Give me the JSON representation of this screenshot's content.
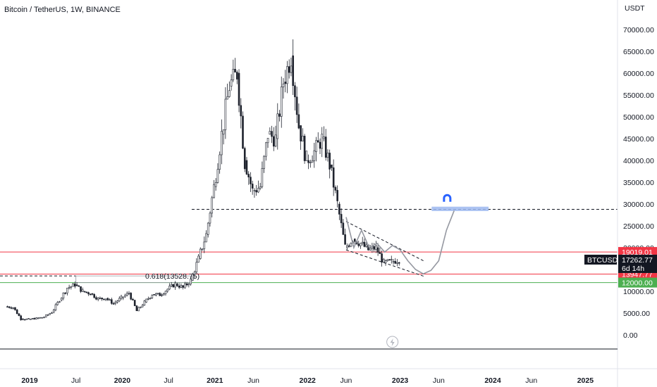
{
  "header": {
    "title": "Bitcoin / TetherUS, 1W, BINANCE"
  },
  "colors": {
    "candle": "#1e222d",
    "projection": "#9598a1",
    "resistance_line": "#f23645",
    "support_line": "#4caf50",
    "target_zone": "#9db8f0",
    "magnet_icon": "#2962ff"
  },
  "chart_data": {
    "type": "candlestick",
    "currency": "USDT",
    "y_scale": "linear",
    "ylim": [
      -3000,
      73000
    ],
    "y_ticks": [
      "70000.00",
      "65000.00",
      "60000.00",
      "55000.00",
      "50000.00",
      "45000.00",
      "40000.00",
      "35000.00",
      "30000.00",
      "25000.00",
      "20000.00",
      "15000.00",
      "10000.00",
      "5000.00",
      "0.00"
    ],
    "x_ticks": [
      "2019",
      "Jul",
      "2020",
      "Jul",
      "2021",
      "Jun",
      "2022",
      "Jun",
      "2023",
      "Jun",
      "2024",
      "Jun",
      "2025"
    ],
    "x_tick_dates": [
      "2019-01",
      "2019-07",
      "2020-01",
      "2020-07",
      "2021-01",
      "2021-06",
      "2022-01",
      "2022-06",
      "2023-01",
      "2023-06",
      "2024-01",
      "2024-06",
      "2025-01"
    ],
    "price_path": [
      [
        "2018-10",
        6500
      ],
      [
        "2018-11",
        6300
      ],
      [
        "2018-12",
        3700
      ],
      [
        "2019-01",
        3600
      ],
      [
        "2019-02",
        3800
      ],
      [
        "2019-03",
        4100
      ],
      [
        "2019-04",
        5200
      ],
      [
        "2019-05",
        8000
      ],
      [
        "2019-06",
        10800
      ],
      [
        "2019-07",
        11500
      ],
      [
        "2019-08",
        10000
      ],
      [
        "2019-09",
        9500
      ],
      [
        "2019-10",
        8300
      ],
      [
        "2019-11",
        8400
      ],
      [
        "2019-12",
        7200
      ],
      [
        "2020-01",
        8500
      ],
      [
        "2020-02",
        9600
      ],
      [
        "2020-03",
        5500
      ],
      [
        "2020-04",
        7500
      ],
      [
        "2020-05",
        9300
      ],
      [
        "2020-06",
        9200
      ],
      [
        "2020-07",
        10500
      ],
      [
        "2020-08",
        11700
      ],
      [
        "2020-09",
        10800
      ],
      [
        "2020-10",
        12500
      ],
      [
        "2020-11",
        17500
      ],
      [
        "2020-12",
        23000
      ],
      [
        "2021-01",
        34000
      ],
      [
        "2021-02",
        46000
      ],
      [
        "2021-03",
        57000
      ],
      [
        "2021-04",
        60000
      ],
      [
        "2021-05",
        40000
      ],
      [
        "2021-06",
        33000
      ],
      [
        "2021-07",
        34000
      ],
      [
        "2021-08",
        46000
      ],
      [
        "2021-09",
        45000
      ],
      [
        "2021-10",
        58000
      ],
      [
        "2021-11",
        64000
      ],
      [
        "2021-12",
        48000
      ],
      [
        "2022-01",
        40000
      ],
      [
        "2022-02",
        42000
      ],
      [
        "2022-03",
        45000
      ],
      [
        "2022-04",
        39000
      ],
      [
        "2022-05",
        30000
      ],
      [
        "2022-06",
        20000
      ],
      [
        "2022-07",
        22000
      ],
      [
        "2022-08",
        21000
      ],
      [
        "2022-09",
        19500
      ],
      [
        "2022-10",
        20000
      ],
      [
        "2022-11",
        16500
      ],
      [
        "2022-12",
        16800
      ],
      [
        "2023-01",
        17262.77
      ]
    ],
    "projection_path": [
      [
        "2022-06",
        27000
      ],
      [
        "2022-07",
        20000
      ],
      [
        "2022-08",
        24000
      ],
      [
        "2022-09",
        20000
      ],
      [
        "2022-10",
        21000
      ],
      [
        "2022-11",
        19000
      ],
      [
        "2022-12",
        20500
      ],
      [
        "2023-01",
        19500
      ],
      [
        "2023-02",
        17000
      ],
      [
        "2023-03",
        15000
      ],
      [
        "2023-04",
        14000
      ],
      [
        "2023-05",
        14800
      ],
      [
        "2023-06",
        17000
      ],
      [
        "2023-07",
        24000
      ],
      [
        "2023-08",
        28500
      ]
    ],
    "horizontal_levels": [
      {
        "name": "resistance",
        "value": 19019.01,
        "label": "19019.01",
        "style": "solid",
        "color": "#f23645"
      },
      {
        "name": "support-1",
        "value": 13947.77,
        "label": "13947.77",
        "style": "solid",
        "color": "#f23645"
      },
      {
        "name": "support-2",
        "value": 12000.0,
        "label": "12000.00",
        "style": "solid",
        "color": "#4caf50"
      },
      {
        "name": "target-level",
        "value": 28800,
        "style": "dashed",
        "color": "#131722"
      },
      {
        "name": "fib-level",
        "value": 13528.75,
        "style": "dashed",
        "color": "#131722"
      }
    ],
    "fib_annotation": "0.618(13528.75)",
    "current_price": {
      "symbol": "BTCUSDT",
      "value": "17262.77",
      "countdown": "6d 14h"
    },
    "target_zone": {
      "start": "2023-06",
      "end": "2023-12",
      "low": 28400,
      "high": 29400
    },
    "channel": {
      "upper": [
        [
          "2022-06",
          26000
        ],
        [
          "2023-03",
          15000
        ]
      ],
      "lower": [
        [
          "2022-06",
          19500
        ],
        [
          "2023-03",
          11500
        ]
      ]
    }
  }
}
